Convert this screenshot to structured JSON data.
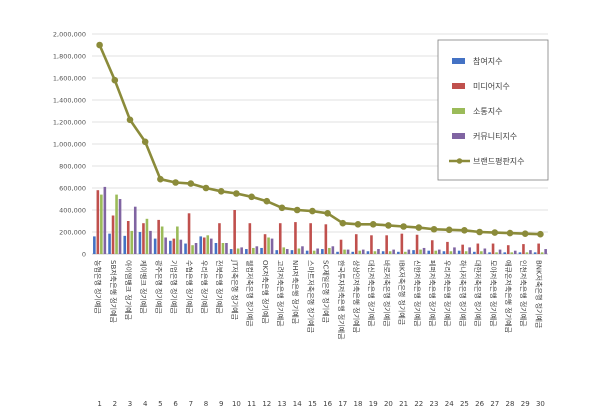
{
  "chart_data": {
    "type": "bar",
    "title": "",
    "xlabel": "",
    "ylabel": "",
    "ylim": [
      0,
      2000000
    ],
    "yticks": [
      0,
      200000,
      400000,
      600000,
      800000,
      1000000,
      1200000,
      1400000,
      1600000,
      1800000,
      2000000
    ],
    "ytick_labels": [
      "0",
      "200,000",
      "400,000",
      "600,000",
      "800,000",
      "1,000,000",
      "1,200,000",
      "1,400,000",
      "1,600,000",
      "1,800,000",
      "2,000,000"
    ],
    "grid": true,
    "legend_position": "top-right",
    "ranks": [
      "1",
      "2",
      "3",
      "4",
      "5",
      "6",
      "7",
      "8",
      "9",
      "10",
      "11",
      "12",
      "13",
      "14",
      "15",
      "16",
      "17",
      "18",
      "19",
      "20",
      "21",
      "22",
      "23",
      "24",
      "25",
      "26",
      "27",
      "28",
      "29",
      "30"
    ],
    "categories": [
      "농협은행 정기예금",
      "SB저축은행 정기예금",
      "아이엠뱅크 정기예금",
      "케이뱅크 정기예금",
      "광주은행 정기예금",
      "기업은행 정기예금",
      "수협은행 정기예금",
      "우리은행 정기예금",
      "전북은행 정기예금",
      "JT저축은행 정기예금",
      "웰컴저축은행 정기예금",
      "OK저축은행 정기예금",
      "고려저축은행 정기예금",
      "NH저축은행 정기예금",
      "스마트저축은행 정기예금",
      "SC제일은행 정기예금",
      "한국투자저축은행 정기예금",
      "상상인저축은행 정기예금",
      "대신저축은행 정기예금",
      "바로저축은행 정기예금",
      "IBK저축은행 정기예금",
      "신한저축은행 정기예금",
      "페퍼저축은행 정기예금",
      "우리저축은행 정기예금",
      "하나저축은행 정기예금",
      "대한저축은행 정기예금",
      "모아저축은행 정기예금",
      "애큐온저축은행 정기예금",
      "인천저축은행 정기예금",
      "BNK저축은행 정기예금"
    ],
    "series": [
      {
        "name": "참여지수",
        "type": "bar",
        "color": "#4472c4",
        "values": [
          160000,
          185000,
          165000,
          200000,
          140000,
          120000,
          95000,
          160000,
          100000,
          45000,
          45000,
          55000,
          35000,
          35000,
          30000,
          45000,
          20000,
          20000,
          25000,
          25000,
          20000,
          35000,
          30000,
          25000,
          30000,
          20000,
          15000,
          15000,
          15000,
          15000
        ]
      },
      {
        "name": "미디어지수",
        "type": "bar",
        "color": "#c0504d",
        "values": [
          580000,
          350000,
          300000,
          280000,
          310000,
          140000,
          370000,
          150000,
          280000,
          400000,
          280000,
          180000,
          280000,
          290000,
          280000,
          270000,
          130000,
          180000,
          170000,
          170000,
          185000,
          175000,
          125000,
          110000,
          85000,
          95000,
          95000,
          80000,
          90000,
          95000
        ]
      },
      {
        "name": "소통지수",
        "type": "bar",
        "color": "#9bbb59",
        "values": [
          540000,
          540000,
          210000,
          320000,
          250000,
          250000,
          80000,
          170000,
          100000,
          50000,
          55000,
          150000,
          60000,
          50000,
          30000,
          55000,
          40000,
          30000,
          25000,
          25000,
          20000,
          40000,
          30000,
          25000,
          25000,
          25000,
          15000,
          15000,
          15000,
          15000
        ]
      },
      {
        "name": "커뮤니티지수",
        "type": "bar",
        "color": "#8064a2",
        "values": [
          610000,
          500000,
          430000,
          210000,
          150000,
          130000,
          100000,
          140000,
          100000,
          60000,
          70000,
          140000,
          45000,
          70000,
          50000,
          70000,
          40000,
          40000,
          45000,
          40000,
          40000,
          55000,
          40000,
          60000,
          60000,
          50000,
          40000,
          30000,
          35000,
          45000
        ]
      },
      {
        "name": "브랜드평판지수",
        "type": "line",
        "color": "#8b8b3a",
        "values": [
          1900000,
          1580000,
          1220000,
          1020000,
          680000,
          650000,
          640000,
          600000,
          570000,
          550000,
          520000,
          480000,
          420000,
          400000,
          390000,
          370000,
          280000,
          270000,
          270000,
          260000,
          250000,
          240000,
          225000,
          220000,
          215000,
          200000,
          195000,
          190000,
          185000,
          180000
        ]
      }
    ]
  }
}
